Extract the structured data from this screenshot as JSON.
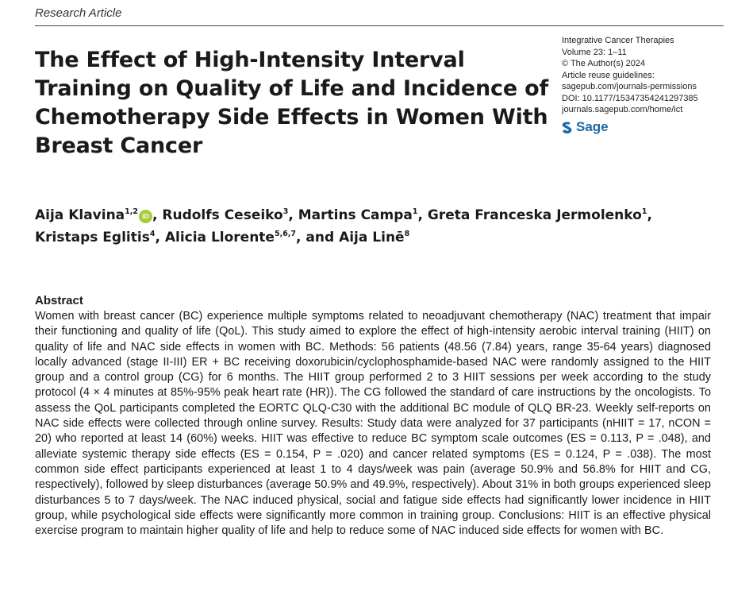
{
  "header": {
    "section_label": "Research Article"
  },
  "title": "The Effect of High-Intensity Interval Training on Quality of Life and Incidence of Chemotherapy Side Effects in Women With Breast Cancer",
  "journal_info": {
    "journal": "Integrative Cancer Therapies",
    "volume": "Volume 23: 1–11",
    "copyright": "© The Author(s) 2024",
    "reuse": "Article reuse guidelines:",
    "permissions_url": "sagepub.com/journals-permissions",
    "doi": "DOI: 10.1177/15347354241297385",
    "journal_url": "journals.sagepub.com/home/ict",
    "publisher": "Sage",
    "publisher_color": "#1a6aa8"
  },
  "orcid_icon_text": "iD",
  "authors": [
    {
      "name": "Aija Klavina",
      "aff": "1,2",
      "sep": ", "
    },
    {
      "name": "Rudolfs Ceseiko",
      "aff": "3",
      "sep": ", "
    },
    {
      "name": "Martins Campa",
      "aff": "1",
      "sep": ", "
    },
    {
      "name": "Greta Franceska Jermolenko",
      "aff": "1",
      "sep": ","
    },
    {
      "name": "Kristaps Eglitis",
      "aff": "4",
      "sep": ", "
    },
    {
      "name": "Alicia Llorente",
      "aff": "5,6,7",
      "sep": ", and "
    },
    {
      "name": "Aija Linē",
      "aff": "8",
      "sep": ""
    }
  ],
  "abstract": {
    "heading": "Abstract",
    "text": "Women with breast cancer (BC) experience multiple symptoms related to neoadjuvant chemotherapy (NAC) treatment that impair their functioning and quality of life (QoL). This study aimed to explore the effect of high-intensity aerobic interval training (HIIT) on quality of life and NAC side effects in women with BC. Methods: 56 patients (48.56 (7.84) years, range 35-64 years) diagnosed locally advanced (stage II-III) ER + BC receiving doxorubicin/cyclophosphamide-based NAC were randomly assigned to the HIIT group and a control group (CG) for 6 months. The HIIT group performed 2 to 3 HIIT sessions per week according to the study protocol (4 × 4 minutes at 85%-95% peak heart rate (HR)). The CG followed the standard of care instructions by the oncologists. To assess the QoL participants completed the EORTC QLQ-C30 with the additional BC module of QLQ BR-23. Weekly self-reports on NAC side effects were collected through online survey. Results: Study data were analyzed for 37 participants (nHIIT = 17, nCON = 20) who reported at least 14 (60%) weeks. HIIT was effective to reduce BC symptom scale outcomes (ES = 0.113, P = .048), and alleviate systemic therapy side effects (ES = 0.154, P = .020) and cancer related symptoms (ES = 0.124, P = .038). The most common side effect participants experienced at least 1 to 4 days/week was pain (average 50.9% and 56.8% for HIIT and CG, respectively), followed by sleep disturbances (average 50.9% and 49.9%, respectively). About 31% in both groups experienced sleep disturbances 5 to 7 days/week. The NAC induced physical, social and fatigue side effects had significantly lower incidence in HIIT group, while psychological side effects were significantly more common in training group. Conclusions: HIIT is an effective physical exercise program to maintain higher quality of life and help to reduce some of NAC induced side effects for women with BC."
  }
}
